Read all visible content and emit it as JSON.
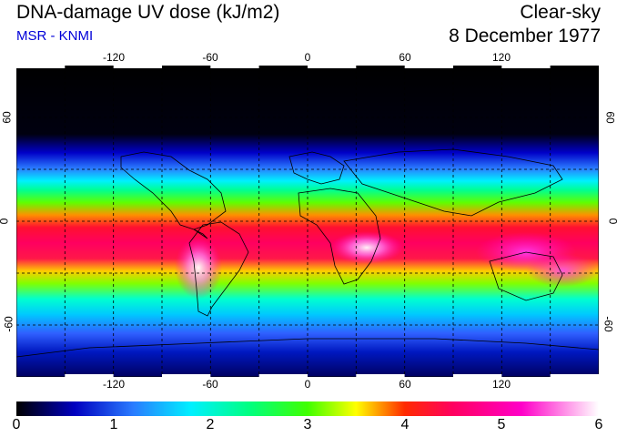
{
  "header": {
    "title": "DNA-damage UV dose (kJ/m2)",
    "subtitle": "MSR - KNMI",
    "sky_condition": "Clear-sky",
    "date": "8 December 1977"
  },
  "map": {
    "projection": "equirectangular",
    "lon_range": [
      -180,
      180
    ],
    "lat_range": [
      -90,
      90
    ],
    "lon_ticks": [
      "-120",
      "-60",
      "0",
      "60",
      "120"
    ],
    "lat_ticks_left": [
      "60",
      "0",
      "-60"
    ],
    "lat_ticks_right": [
      "60",
      "0",
      "-60"
    ],
    "gridlines": "dashed every 30 degrees"
  },
  "colorbar": {
    "labels": [
      "0",
      "1",
      "2",
      "3",
      "4",
      "5",
      "6"
    ],
    "min": 0,
    "max": 6,
    "stops": [
      {
        "value": 0,
        "color": "#000000"
      },
      {
        "value": 0.6,
        "color": "#0000c0"
      },
      {
        "value": 1.2,
        "color": "#2a7bff"
      },
      {
        "value": 1.8,
        "color": "#00f0ff"
      },
      {
        "value": 2.4,
        "color": "#00ff80"
      },
      {
        "value": 3.0,
        "color": "#40ff00"
      },
      {
        "value": 3.5,
        "color": "#ffff00"
      },
      {
        "value": 4.0,
        "color": "#ff2a00"
      },
      {
        "value": 4.5,
        "color": "#ff0060"
      },
      {
        "value": 5.2,
        "color": "#ff00c8"
      },
      {
        "value": 6.0,
        "color": "#ffffff"
      }
    ]
  }
}
